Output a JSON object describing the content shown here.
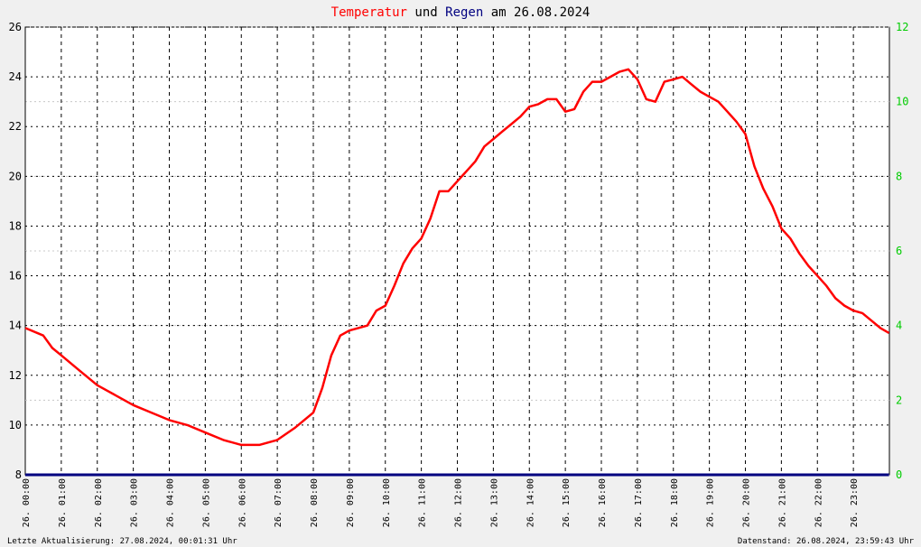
{
  "chart_data": {
    "type": "line",
    "title_parts": [
      {
        "text": "Temperatur",
        "color": "#ff0000"
      },
      {
        "text": "und",
        "color": "#000000"
      },
      {
        "text": "Regen",
        "color": "#000080"
      },
      {
        "text": "am 26.08.2024",
        "color": "#000000"
      }
    ],
    "footer_left": "Letzte Aktualisierung: 27.08.2024, 00:01:31 Uhr",
    "footer_right": "Datenstand: 26.08.2024, 23:59:43 Uhr",
    "xlim": [
      0,
      24
    ],
    "xticks": [
      {
        "value": 0,
        "label": "26. 00:00"
      },
      {
        "value": 1,
        "label": "26. 01:00"
      },
      {
        "value": 2,
        "label": "26. 02:00"
      },
      {
        "value": 3,
        "label": "26. 03:00"
      },
      {
        "value": 4,
        "label": "26. 04:00"
      },
      {
        "value": 5,
        "label": "26. 05:00"
      },
      {
        "value": 6,
        "label": "26. 06:00"
      },
      {
        "value": 7,
        "label": "26. 07:00"
      },
      {
        "value": 8,
        "label": "26. 08:00"
      },
      {
        "value": 9,
        "label": "26. 09:00"
      },
      {
        "value": 10,
        "label": "26. 10:00"
      },
      {
        "value": 11,
        "label": "26. 11:00"
      },
      {
        "value": 12,
        "label": "26. 12:00"
      },
      {
        "value": 13,
        "label": "26. 13:00"
      },
      {
        "value": 14,
        "label": "26. 14:00"
      },
      {
        "value": 15,
        "label": "26. 15:00"
      },
      {
        "value": 16,
        "label": "26. 16:00"
      },
      {
        "value": 17,
        "label": "26. 17:00"
      },
      {
        "value": 18,
        "label": "26. 18:00"
      },
      {
        "value": 19,
        "label": "26. 19:00"
      },
      {
        "value": 20,
        "label": "26. 20:00"
      },
      {
        "value": 21,
        "label": "26. 21:00"
      },
      {
        "value": 22,
        "label": "26. 22:00"
      },
      {
        "value": 23,
        "label": "26. 23:00"
      }
    ],
    "ylim": [
      8,
      26
    ],
    "yticks": [
      8,
      10,
      12,
      14,
      16,
      18,
      20,
      22,
      24,
      26
    ],
    "y2lim": [
      0,
      12
    ],
    "y2ticks": [
      0,
      2,
      4,
      6,
      8,
      10,
      12
    ],
    "y2_color": "#00cc00",
    "grid": true,
    "series": [
      {
        "name": "Temperatur",
        "color": "#ff0000",
        "x": [
          0,
          0.5,
          0.75,
          1,
          1.5,
          2,
          2.5,
          3,
          3.5,
          4,
          4.5,
          5,
          5.5,
          6,
          6.5,
          7,
          7.5,
          8,
          8.25,
          8.5,
          8.75,
          9,
          9.5,
          9.75,
          10,
          10.25,
          10.5,
          10.75,
          11,
          11.25,
          11.5,
          11.75,
          12,
          12.25,
          12.5,
          12.75,
          13,
          13.25,
          13.5,
          13.75,
          14,
          14.25,
          14.5,
          14.75,
          15,
          15.25,
          15.5,
          15.75,
          16,
          16.25,
          16.5,
          16.75,
          17,
          17.25,
          17.5,
          17.75,
          18,
          18.25,
          18.5,
          18.75,
          19,
          19.25,
          19.5,
          19.75,
          20,
          20.25,
          20.5,
          20.75,
          21,
          21.25,
          21.5,
          21.75,
          22,
          22.25,
          22.5,
          22.75,
          23,
          23.25,
          23.5,
          23.75,
          23.99
        ],
        "values": [
          13.9,
          13.6,
          13.1,
          12.8,
          12.2,
          11.6,
          11.2,
          10.8,
          10.5,
          10.2,
          10.0,
          9.7,
          9.4,
          9.2,
          9.2,
          9.4,
          9.9,
          10.5,
          11.5,
          12.8,
          13.6,
          13.8,
          14.0,
          14.6,
          14.8,
          15.6,
          16.5,
          17.1,
          17.5,
          18.3,
          19.4,
          19.4,
          19.8,
          20.2,
          20.6,
          21.2,
          21.5,
          21.8,
          22.1,
          22.4,
          22.8,
          22.9,
          23.1,
          23.1,
          22.6,
          22.7,
          23.4,
          23.8,
          23.8,
          24.0,
          24.2,
          24.3,
          23.9,
          23.1,
          23.0,
          23.8,
          23.9,
          24.0,
          23.7,
          23.4,
          23.2,
          23.0,
          22.6,
          22.2,
          21.7,
          20.4,
          19.5,
          18.8,
          17.9,
          17.5,
          16.9,
          16.4,
          16.0,
          15.6,
          15.1,
          14.8,
          14.6,
          14.5,
          14.2,
          13.9,
          13.7
        ]
      },
      {
        "name": "Regen",
        "color": "#000080",
        "axis": "y2",
        "x": [
          0,
          23.99
        ],
        "values": [
          0,
          0
        ]
      }
    ]
  }
}
